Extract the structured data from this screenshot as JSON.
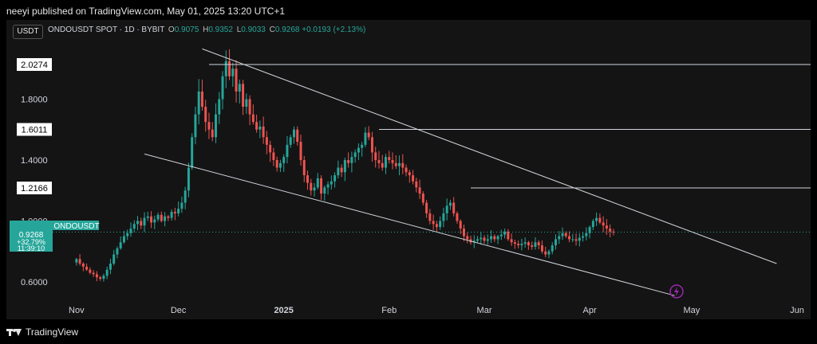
{
  "header": {
    "attribution": "neeyi published on TradingView.com, May 01, 2025 13:20 UTC+1",
    "currency_button": "USDT",
    "symbol": "ONDOUSDT SPOT · 1D · BYBIT",
    "ohlc": [
      {
        "key": "O",
        "value": "0.9075"
      },
      {
        "key": "H",
        "value": "0.9352"
      },
      {
        "key": "L",
        "value": "0.9033"
      },
      {
        "key": "C",
        "value": "0.9268"
      }
    ],
    "change": "+0.0193 (+2.13%)"
  },
  "footer": {
    "brand": "TradingView"
  },
  "colors": {
    "up": "#26a69a",
    "down": "#ef5350",
    "line": "#d1d4dc",
    "background": "#141414"
  },
  "chart_data": {
    "type": "candlestick",
    "symbol": "ONDOUSDT",
    "timeframe": "1D",
    "exchange": "BYBIT",
    "x_range": [
      "2024-10-25",
      "2025-06-05"
    ],
    "y_range": [
      0.49,
      2.2
    ],
    "y_ticks": [
      0.6,
      1.0,
      1.4,
      1.8
    ],
    "y_tick_labels": [
      "0.6000",
      "1.0000",
      "1.4000",
      "1.8000"
    ],
    "x_ticks": [
      {
        "date": "2024-11-01",
        "label": "Nov"
      },
      {
        "date": "2024-12-01",
        "label": "Dec"
      },
      {
        "date": "2025-01-01",
        "label": "2025"
      },
      {
        "date": "2025-02-01",
        "label": "Feb"
      },
      {
        "date": "2025-03-01",
        "label": "Mar"
      },
      {
        "date": "2025-04-01",
        "label": "Apr"
      },
      {
        "date": "2025-05-01",
        "label": "May"
      },
      {
        "date": "2025-06-01",
        "label": "Jun"
      }
    ],
    "closes": [
      0.75,
      0.72,
      0.7,
      0.68,
      0.66,
      0.65,
      0.63,
      0.62,
      0.64,
      0.68,
      0.72,
      0.78,
      0.82,
      0.86,
      0.9,
      0.92,
      0.95,
      0.98,
      1.0,
      0.97,
      1.02,
      1.03,
      0.99,
      1.01,
      1.04,
      1.0,
      1.03,
      1.02,
      1.06,
      1.05,
      1.08,
      1.12,
      1.2,
      1.35,
      1.55,
      1.7,
      1.85,
      1.75,
      1.65,
      1.6,
      1.55,
      1.7,
      1.8,
      1.95,
      2.05,
      1.95,
      2.0,
      1.85,
      1.9,
      1.75,
      1.8,
      1.7,
      1.65,
      1.6,
      1.62,
      1.55,
      1.5,
      1.45,
      1.4,
      1.35,
      1.38,
      1.42,
      1.5,
      1.55,
      1.6,
      1.52,
      1.4,
      1.3,
      1.25,
      1.2,
      1.22,
      1.28,
      1.18,
      1.22,
      1.24,
      1.26,
      1.3,
      1.35,
      1.32,
      1.4,
      1.38,
      1.42,
      1.45,
      1.48,
      1.5,
      1.58,
      1.55,
      1.45,
      1.4,
      1.38,
      1.35,
      1.42,
      1.4,
      1.38,
      1.36,
      1.38,
      1.35,
      1.32,
      1.3,
      1.26,
      1.22,
      1.18,
      1.12,
      1.05,
      1.0,
      0.98,
      0.96,
      1.0,
      1.05,
      1.1,
      1.12,
      1.05,
      1.0,
      0.95,
      0.9,
      0.88,
      0.86,
      0.87,
      0.88,
      0.89,
      0.87,
      0.88,
      0.9,
      0.88,
      0.9,
      0.91,
      0.93,
      0.88,
      0.86,
      0.85,
      0.84,
      0.85,
      0.86,
      0.84,
      0.83,
      0.86,
      0.84,
      0.8,
      0.78,
      0.8,
      0.84,
      0.88,
      0.9,
      0.92,
      0.9,
      0.88,
      0.88,
      0.87,
      0.89,
      0.9,
      0.92,
      0.96,
      1.0,
      1.02,
      0.99,
      0.97,
      0.95,
      0.93,
      0.9268
    ],
    "annotations": {
      "horizontal_levels": [
        {
          "value": 2.0274,
          "label": "2.0274"
        },
        {
          "value": 1.6011,
          "label": "1.6011"
        },
        {
          "value": 1.2166,
          "label": "1.2166"
        }
      ],
      "channel_upper": [
        [
          "2024-12-08",
          2.13
        ],
        [
          "2025-05-26",
          0.72
        ]
      ],
      "channel_lower": [
        [
          "2024-11-21",
          1.44
        ],
        [
          "2025-04-26",
          0.51
        ]
      ]
    },
    "last_price_label": {
      "symbol": "ONDOUSDT",
      "price": "0.9268",
      "change": "+32.79%",
      "countdown": "11:39:10"
    }
  }
}
